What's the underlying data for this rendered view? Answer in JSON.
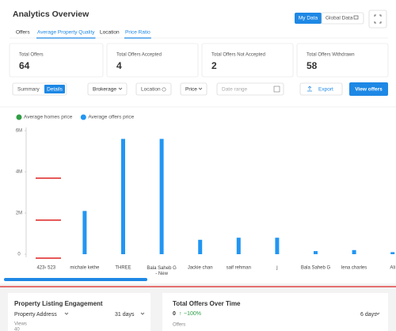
{
  "header": {
    "title": "Analytics Overview",
    "my_data": "My Data",
    "global_data": "Global Data"
  },
  "tabs": [
    "Offers",
    "Average Property Quality",
    "Location",
    "Price Ratio"
  ],
  "stats": [
    {
      "label": "Total Offers",
      "value": 64
    },
    {
      "label": "Total Offers Accepted",
      "value": 4
    },
    {
      "label": "Total Offers Not Accepted",
      "value": 2
    },
    {
      "label": "Total Offers Withdrawn",
      "value": 58
    }
  ],
  "filters": {
    "summary": "Summary",
    "details": "Details",
    "brokerage": "Brokerage",
    "location": "Location",
    "price": "Price",
    "date_range": "Date range",
    "export": "Export",
    "view_offers": "View offers"
  },
  "chart_data": {
    "type": "bar",
    "categories": [
      "423‹ 523",
      "michale kethe",
      "THREE",
      "Bala Saheb G - New",
      "Jackie chan",
      "saif rehman",
      "j",
      "Bala Saheb G",
      "lena charles",
      "Ali"
    ],
    "series": [
      {
        "name": "Average homes price",
        "color": "#2e9e44",
        "values": [
          0,
          0,
          0,
          0,
          0,
          0,
          0,
          0,
          0,
          0
        ]
      },
      {
        "name": "Average offers price",
        "color": "#2196f3",
        "values": [
          0,
          2100000,
          5600000,
          5600000,
          700000,
          800000,
          800000,
          150000,
          200000,
          100000
        ]
      }
    ],
    "ylim": [
      0,
      6000000
    ],
    "yticks": [
      {
        "value": 0,
        "label": "0"
      },
      {
        "value": 2000000,
        "label": "2M"
      },
      {
        "value": 4000000,
        "label": "4M"
      },
      {
        "value": 6000000,
        "label": "6M"
      }
    ],
    "grid": false,
    "legend": "top-left"
  },
  "engagement": {
    "title": "Property Listing Engagement",
    "selector": "Property Address",
    "period": "31 days",
    "metric": "Views",
    "metric_value": "40"
  },
  "offers_time": {
    "title": "Total Offers Over Time",
    "value": "0",
    "change": "~100%",
    "period": "6 days",
    "metric": "Offers"
  }
}
